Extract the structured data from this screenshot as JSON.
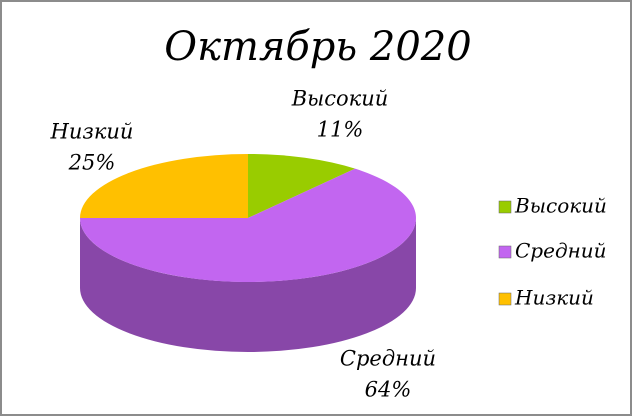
{
  "chart_data": {
    "type": "pie",
    "title": "Октябрь 2020",
    "categories": [
      "Высокий",
      "Средний",
      "Низкий"
    ],
    "values": [
      11,
      64,
      25
    ],
    "value_labels": [
      "11%",
      "64%",
      "25%"
    ],
    "colors": [
      "#99cc00",
      "#c266f0",
      "#ffc000"
    ],
    "legend": "right"
  }
}
